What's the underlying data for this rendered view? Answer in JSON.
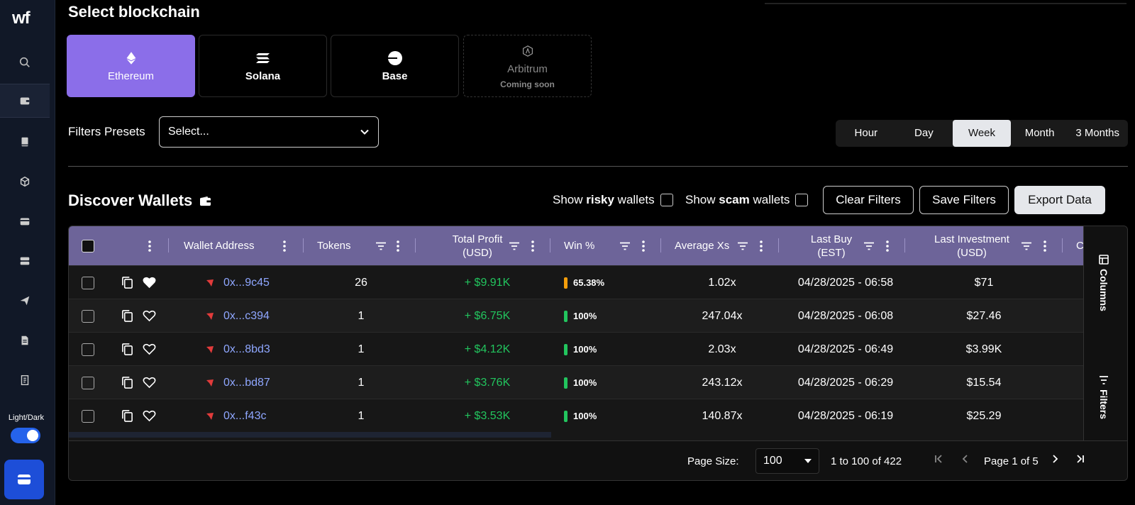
{
  "sidebar": {
    "logo": "wf",
    "icons": [
      "search-icon",
      "wallet-icon",
      "book-icon",
      "cube-icon",
      "card-icon",
      "server-icon",
      "send-icon",
      "document-icon",
      "receipt-icon"
    ],
    "theme_label": "Light/Dark"
  },
  "chain_section": {
    "title": "Select blockchain",
    "chains": [
      {
        "name": "Ethereum",
        "icon": "ethereum-icon",
        "selected": true
      },
      {
        "name": "Solana",
        "icon": "solana-icon"
      },
      {
        "name": "Base",
        "icon": "base-icon"
      },
      {
        "name": "Arbitrum",
        "icon": "arbitrum-icon",
        "sub": "Coming soon"
      }
    ]
  },
  "filters": {
    "presets_label": "Filters Presets",
    "select_value": "Select...",
    "time_ranges": [
      "Hour",
      "Day",
      "Week",
      "Month",
      "3 Months"
    ],
    "active_range": "Week"
  },
  "discover": {
    "title": "Discover Wallets",
    "risky_prefix": "Show ",
    "risky_bold": "risky",
    "risky_suffix": " wallets",
    "scam_prefix": "Show ",
    "scam_bold": "scam",
    "scam_suffix": " wallets",
    "clear_label": "Clear Filters",
    "save_label": "Save Filters",
    "export_label": "Export Data"
  },
  "table": {
    "headers": {
      "wallet": "Wallet Address",
      "tokens": "Tokens",
      "profit_1": "Total Profit",
      "profit_2": "(USD)",
      "win": "Win %",
      "avg": "Average Xs",
      "lastbuy_1": "Last Buy",
      "lastbuy_2": "(EST)",
      "inv_1": "Last Investment",
      "inv_2": "(USD)",
      "extra": "C"
    },
    "rows": [
      {
        "address": "0x...9c45",
        "tokens": "26",
        "profit": "+ $9.91K",
        "win": "65.38%",
        "win_color": "#f59e0b",
        "avg": "1.02x",
        "last_buy": "04/28/2025 - 06:58",
        "investment": "$71",
        "fav": true
      },
      {
        "address": "0x...c394",
        "tokens": "1",
        "profit": "+ $6.75K",
        "win": "100%",
        "win_color": "#22c55e",
        "avg": "247.04x",
        "last_buy": "04/28/2025 - 06:08",
        "investment": "$27.46",
        "fav": false
      },
      {
        "address": "0x...8bd3",
        "tokens": "1",
        "profit": "+ $4.12K",
        "win": "100%",
        "win_color": "#22c55e",
        "avg": "2.03x",
        "last_buy": "04/28/2025 - 06:49",
        "investment": "$3.99K",
        "fav": false
      },
      {
        "address": "0x...bd87",
        "tokens": "1",
        "profit": "+ $3.76K",
        "win": "100%",
        "win_color": "#22c55e",
        "avg": "243.12x",
        "last_buy": "04/28/2025 - 06:29",
        "investment": "$15.54",
        "fav": false
      },
      {
        "address": "0x...f43c",
        "tokens": "1",
        "profit": "+ $3.53K",
        "win": "100%",
        "win_color": "#22c55e",
        "avg": "140.87x",
        "last_buy": "04/28/2025 - 06:19",
        "investment": "$25.29",
        "fav": false
      }
    ],
    "side_columns": "Columns",
    "side_filters": "Filters"
  },
  "pagination": {
    "page_size_label": "Page Size:",
    "page_size": "100",
    "range": "1 to 100 of 422",
    "page_info": "Page 1 of 5"
  }
}
